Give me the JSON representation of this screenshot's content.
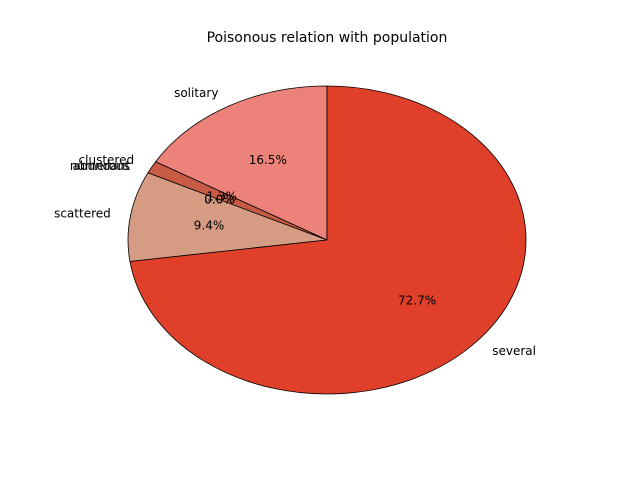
{
  "chart_data": {
    "type": "pie",
    "title": "Poisonous relation with population",
    "labels": [
      "solitary",
      "clustered",
      "abundant",
      "numerous",
      "scattered",
      "several"
    ],
    "values": [
      16.5,
      1.3,
      0.0,
      0.0,
      9.4,
      72.7
    ],
    "pct_labels": [
      "16.5%",
      "1.3%",
      "0.0%",
      "0.0%",
      "9.4%",
      "72.7%"
    ],
    "colors": [
      "#ec8279",
      "#c85b43",
      "#d4907a",
      "#d4a088",
      "#d59c83",
      "#e03f29"
    ],
    "start_angle_deg": 90,
    "direction": "counterclockwise"
  }
}
